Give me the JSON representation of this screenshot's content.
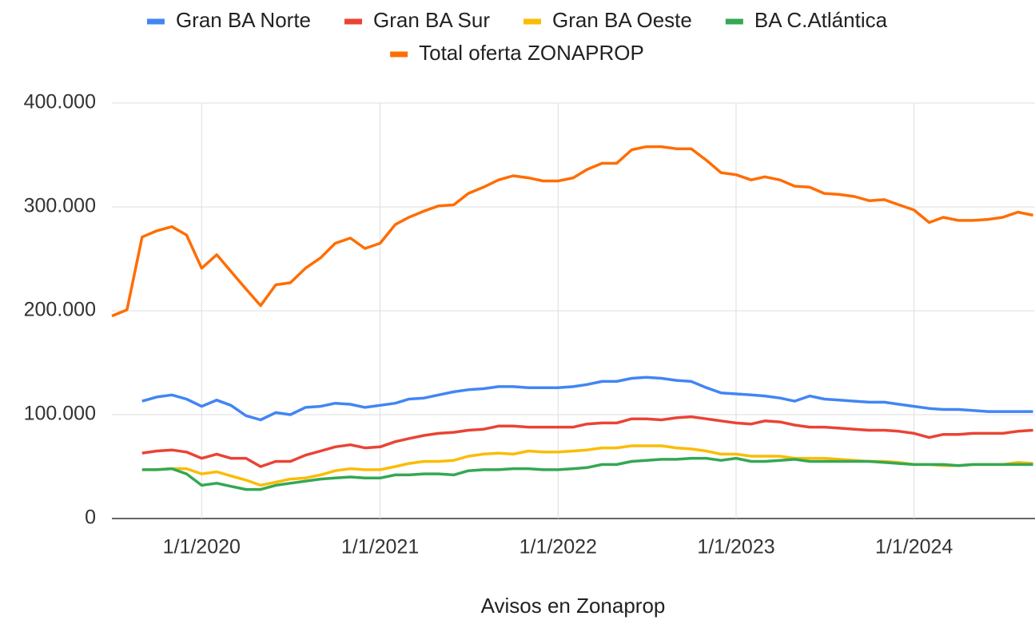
{
  "chart_data": {
    "type": "line",
    "x_label": "Avisos en Zonaprop",
    "x": [
      "2019-07-01",
      "2019-08-01",
      "2019-09-01",
      "2019-10-01",
      "2019-11-01",
      "2019-12-01",
      "2020-01-01",
      "2020-02-01",
      "2020-03-01",
      "2020-04-01",
      "2020-05-01",
      "2020-06-01",
      "2020-07-01",
      "2020-08-01",
      "2020-09-01",
      "2020-10-01",
      "2020-11-01",
      "2020-12-01",
      "2021-01-01",
      "2021-02-01",
      "2021-03-01",
      "2021-04-01",
      "2021-05-01",
      "2021-06-01",
      "2021-07-01",
      "2021-08-01",
      "2021-09-01",
      "2021-10-01",
      "2021-11-01",
      "2021-12-01",
      "2022-01-01",
      "2022-02-01",
      "2022-03-01",
      "2022-04-01",
      "2022-05-01",
      "2022-06-01",
      "2022-07-01",
      "2022-08-01",
      "2022-09-01",
      "2022-10-01",
      "2022-11-01",
      "2022-12-01",
      "2023-01-01",
      "2023-02-01",
      "2023-03-01",
      "2023-04-01",
      "2023-05-01",
      "2023-06-01",
      "2023-07-01",
      "2023-08-01",
      "2023-09-01",
      "2023-10-01",
      "2023-11-01",
      "2023-12-01",
      "2024-01-01",
      "2024-02-01",
      "2024-03-01",
      "2024-04-01",
      "2024-05-01",
      "2024-06-01",
      "2024-07-01",
      "2024-08-01",
      "2024-09-01"
    ],
    "series": [
      {
        "name": "Gran BA Norte",
        "color": "#4285f4",
        "values": [
          null,
          null,
          113000,
          117000,
          119000,
          115000,
          108000,
          114000,
          109000,
          99000,
          95000,
          102000,
          100000,
          107000,
          108000,
          111000,
          110000,
          107000,
          109000,
          111000,
          115000,
          116000,
          119000,
          122000,
          124000,
          125000,
          127000,
          127000,
          126000,
          126000,
          126000,
          127000,
          129000,
          132000,
          132000,
          135000,
          136000,
          135000,
          133000,
          132000,
          126000,
          121000,
          120000,
          119000,
          118000,
          116000,
          113000,
          118000,
          115000,
          114000,
          113000,
          112000,
          112000,
          110000,
          108000,
          106000,
          105000,
          105000,
          104000,
          103000,
          103000,
          103000,
          103000
        ]
      },
      {
        "name": "Gran BA Sur",
        "color": "#ea4335",
        "values": [
          null,
          null,
          63000,
          65000,
          66000,
          64000,
          58000,
          62000,
          58000,
          58000,
          50000,
          55000,
          55000,
          61000,
          65000,
          69000,
          71000,
          68000,
          69000,
          74000,
          77000,
          80000,
          82000,
          83000,
          85000,
          86000,
          89000,
          89000,
          88000,
          88000,
          88000,
          88000,
          91000,
          92000,
          92000,
          96000,
          96000,
          95000,
          97000,
          98000,
          96000,
          94000,
          92000,
          91000,
          94000,
          93000,
          90000,
          88000,
          88000,
          87000,
          86000,
          85000,
          85000,
          84000,
          82000,
          78000,
          81000,
          81000,
          82000,
          82000,
          82000,
          84000,
          85000
        ]
      },
      {
        "name": "Gran BA Oeste",
        "color": "#fbbc04",
        "values": [
          null,
          null,
          47000,
          47000,
          48000,
          48000,
          43000,
          45000,
          41000,
          37000,
          32000,
          35000,
          38000,
          39000,
          42000,
          46000,
          48000,
          47000,
          47000,
          50000,
          53000,
          55000,
          55000,
          56000,
          60000,
          62000,
          63000,
          62000,
          65000,
          64000,
          64000,
          65000,
          66000,
          68000,
          68000,
          70000,
          70000,
          70000,
          68000,
          67000,
          65000,
          62000,
          62000,
          60000,
          60000,
          60000,
          58000,
          58000,
          58000,
          57000,
          56000,
          55000,
          55000,
          54000,
          52000,
          52000,
          51000,
          51000,
          52000,
          52000,
          52000,
          54000,
          53000
        ]
      },
      {
        "name": "BA C.Atlántica",
        "color": "#34a853",
        "values": [
          null,
          null,
          47000,
          47000,
          48000,
          43000,
          32000,
          34000,
          31000,
          28000,
          28000,
          32000,
          34000,
          36000,
          38000,
          39000,
          40000,
          39000,
          39000,
          42000,
          42000,
          43000,
          43000,
          42000,
          46000,
          47000,
          47000,
          48000,
          48000,
          47000,
          47000,
          48000,
          49000,
          52000,
          52000,
          55000,
          56000,
          57000,
          57000,
          58000,
          58000,
          56000,
          58000,
          55000,
          55000,
          56000,
          57000,
          55000,
          55000,
          55000,
          55000,
          55000,
          54000,
          53000,
          52000,
          52000,
          52000,
          51000,
          52000,
          52000,
          52000,
          52000,
          52000
        ]
      },
      {
        "name": "Total oferta ZONAPROP",
        "color": "#ff6d01",
        "values": [
          195000,
          201000,
          271000,
          277000,
          281000,
          273000,
          241000,
          254000,
          238000,
          221000,
          205000,
          225000,
          227000,
          241000,
          251000,
          265000,
          270000,
          260000,
          265000,
          283000,
          290000,
          296000,
          301000,
          302000,
          313000,
          319000,
          326000,
          330000,
          328000,
          325000,
          325000,
          328000,
          336000,
          342000,
          342000,
          355000,
          358000,
          358000,
          356000,
          356000,
          345000,
          333000,
          331000,
          326000,
          329000,
          326000,
          320000,
          319000,
          313000,
          312000,
          310000,
          306000,
          307000,
          302000,
          297000,
          285000,
          290000,
          287000,
          287000,
          288000,
          290000,
          295000,
          292000
        ]
      }
    ],
    "xlim": [
      "2019-07-01",
      "2024-09-05"
    ],
    "xticks": [
      {
        "value": "2020-01-01",
        "label": "1/1/2020"
      },
      {
        "value": "2021-01-01",
        "label": "1/1/2021"
      },
      {
        "value": "2022-01-01",
        "label": "1/1/2022"
      },
      {
        "value": "2023-01-01",
        "label": "1/1/2023"
      },
      {
        "value": "2024-01-01",
        "label": "1/1/2024"
      }
    ],
    "ylim": [
      0,
      400000
    ],
    "yticks": [
      0,
      {
        "value": 100000,
        "label": "100.000"
      },
      {
        "value": 200000,
        "label": "200.000"
      },
      {
        "value": 300000,
        "label": "300.000"
      },
      {
        "value": 400000,
        "label": "400.000"
      }
    ],
    "grid": true,
    "legend": "top"
  }
}
